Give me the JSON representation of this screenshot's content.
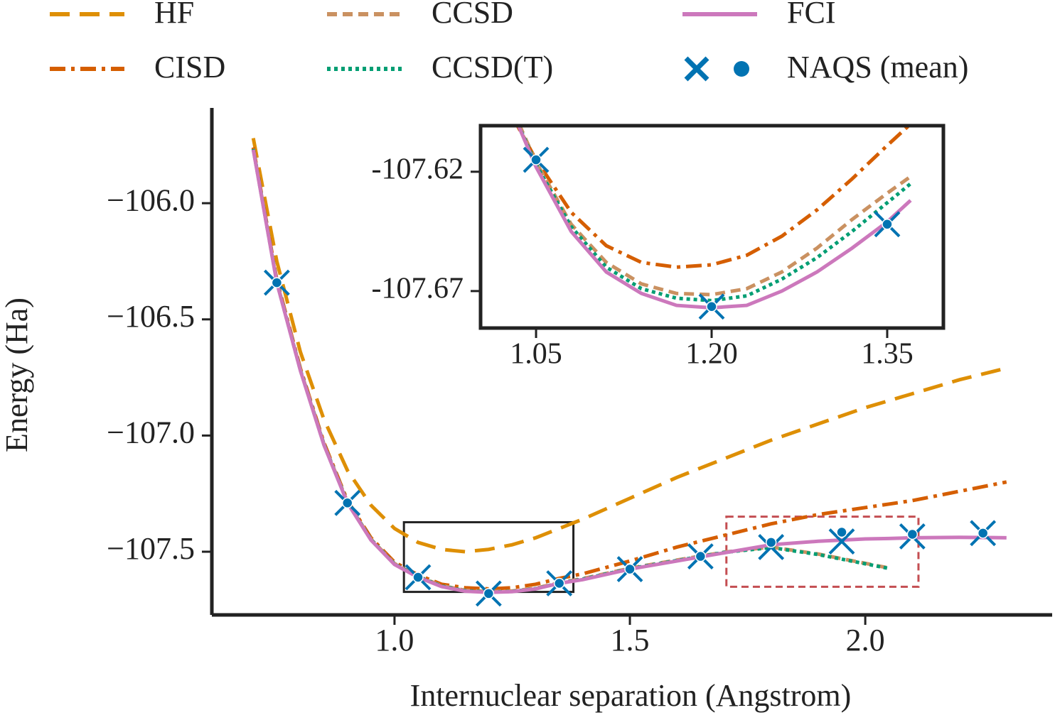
{
  "chart_data": [
    {
      "type": "line",
      "xlabel": "Internuclear separation (Angstrom)",
      "ylabel": "Energy (Ha)",
      "xlim": [
        0.612,
        2.397
      ],
      "ylim": [
        -107.772,
        -105.59
      ],
      "xticks": [
        {
          "value": 1,
          "label": "1.0"
        },
        1.5,
        {
          "value": 2,
          "label": "2.0"
        }
      ],
      "yticks": [
        {
          "value": -106,
          "label": "−106.0"
        },
        {
          "value": -106.5,
          "label": "−106.5"
        },
        {
          "value": -107,
          "label": "−107.0"
        },
        {
          "value": -107.5,
          "label": "−107.5"
        }
      ],
      "x": [
        0.7,
        0.75,
        0.8,
        0.85,
        0.9,
        0.95,
        1.0,
        1.05,
        1.1,
        1.15,
        1.2,
        1.25,
        1.3,
        1.35,
        1.4,
        1.5,
        1.6,
        1.7,
        1.8,
        1.9,
        2.0,
        2.05,
        2.1,
        2.2,
        2.3
      ],
      "series": [
        {
          "name": "HF",
          "color": "#de8f05",
          "linestyle": "dashed",
          "values": [
            -105.72,
            -106.25,
            -106.64,
            -106.93,
            -107.15,
            -107.3,
            -107.4,
            -107.46,
            -107.49,
            -107.5,
            -107.49,
            -107.47,
            -107.44,
            -107.4,
            -107.36,
            -107.27,
            -107.18,
            -107.1,
            -107.02,
            -106.95,
            -106.88,
            -106.85,
            -106.82,
            -106.76,
            -106.71
          ]
        },
        {
          "name": "CISD",
          "color": "#d55e00",
          "linestyle": "dashdot",
          "values": [
            -105.76,
            -106.33,
            -106.71,
            -107.03,
            -107.28,
            -107.44,
            -107.545,
            -107.6,
            -107.64,
            -107.655,
            -107.66,
            -107.655,
            -107.64,
            -107.615,
            -107.595,
            -107.54,
            -107.48,
            -107.43,
            -107.38,
            -107.34,
            -107.31,
            -107.295,
            -107.28,
            -107.24,
            -107.2
          ]
        },
        {
          "name": "CCSD",
          "color": "#ca9161",
          "linestyle": "shortdash",
          "values": [
            -105.765,
            -106.338,
            -106.716,
            -107.036,
            -107.286,
            -107.446,
            -107.551,
            -107.606,
            -107.646,
            -107.666,
            -107.6715,
            -107.669,
            -107.657,
            -107.633,
            -107.616,
            -107.571,
            -107.536,
            -107.502,
            -107.48,
            -107.51,
            -107.55,
            -107.57,
            null,
            null,
            null
          ]
        },
        {
          "name": "CCSD(T)",
          "color": "#029e73",
          "linestyle": "dotted",
          "values": [
            -105.767,
            -106.34,
            -106.718,
            -107.038,
            -107.288,
            -107.448,
            -107.553,
            -107.608,
            -107.648,
            -107.668,
            -107.674,
            -107.671,
            -107.659,
            -107.635,
            -107.618,
            -107.573,
            -107.538,
            -107.503,
            -107.482,
            -107.512,
            -107.552,
            -107.572,
            null,
            null,
            null
          ]
        },
        {
          "name": "FCI",
          "color": "#cc78bc",
          "linestyle": "solid",
          "values": [
            -105.77,
            -106.342,
            -106.72,
            -107.04,
            -107.29,
            -107.45,
            -107.555,
            -107.61,
            -107.65,
            -107.67,
            -107.675,
            -107.672,
            -107.66,
            -107.636,
            -107.62,
            -107.575,
            -107.54,
            -107.505,
            -107.47,
            -107.455,
            -107.445,
            -107.443,
            -107.44,
            -107.438,
            -107.44
          ]
        },
        {
          "name": "NAQS (mean)",
          "color": "#0173b2",
          "marker": "x",
          "x": [
            0.75,
            0.9,
            1.05,
            1.2,
            1.35,
            1.5,
            1.65,
            1.8,
            1.95,
            2.1,
            2.25
          ],
          "values": [
            -106.342,
            -107.29,
            -107.61,
            -107.68,
            -107.636,
            -107.575,
            -107.52,
            -107.48,
            -107.456,
            -107.434,
            -107.42
          ],
          "mean_values": [
            -106.342,
            -107.29,
            -107.61,
            -107.68,
            -107.636,
            -107.575,
            -107.52,
            -107.46,
            -107.416,
            -107.425,
            -107.42
          ]
        }
      ],
      "zoom_box": {
        "xlim": [
          1.02,
          1.38
        ],
        "ylim": [
          -107.673,
          -107.373
        ],
        "color": "#222222"
      },
      "highlight_box": {
        "xlim": [
          1.705,
          2.113
        ],
        "ylim": [
          -107.651,
          -107.349
        ],
        "color": "#c44e52"
      }
    },
    {
      "type": "line",
      "xlim": [
        1.0026,
        1.398
      ],
      "ylim": [
        -107.6855,
        -107.6007
      ],
      "xticks": [
        1.05,
        {
          "value": 1.2,
          "label": "1.20"
        },
        1.35
      ],
      "yticks": [
        -107.62,
        -107.67
      ],
      "x": [
        1.03,
        1.05,
        1.08,
        1.11,
        1.14,
        1.17,
        1.2,
        1.23,
        1.26,
        1.29,
        1.32,
        1.35,
        1.37
      ],
      "series": [
        {
          "color": "#d55e00",
          "linestyle": "dashdot",
          "values": [
            -107.597,
            -107.615,
            -107.637,
            -107.651,
            -107.658,
            -107.66,
            -107.659,
            -107.655,
            -107.647,
            -107.636,
            -107.623,
            -107.609,
            -107.6
          ]
        },
        {
          "color": "#ca9161",
          "linestyle": "shortdash",
          "values": [
            -107.594,
            -107.616,
            -107.642,
            -107.658,
            -107.667,
            -107.671,
            -107.6715,
            -107.669,
            -107.662,
            -107.652,
            -107.64,
            -107.629,
            -107.622
          ]
        },
        {
          "color": "#029e73",
          "linestyle": "dotted",
          "values": [
            -107.595,
            -107.617,
            -107.643,
            -107.66,
            -107.669,
            -107.673,
            -107.674,
            -107.672,
            -107.665,
            -107.656,
            -107.645,
            -107.633,
            -107.625
          ]
        },
        {
          "color": "#cc78bc",
          "linestyle": "solid",
          "values": [
            -107.595,
            -107.618,
            -107.645,
            -107.662,
            -107.671,
            -107.676,
            -107.677,
            -107.676,
            -107.67,
            -107.662,
            -107.652,
            -107.641,
            -107.632
          ]
        },
        {
          "color": "#0173b2",
          "marker": "x",
          "x": [
            1.05,
            1.2,
            1.35
          ],
          "values": [
            -107.615,
            -107.6765,
            -107.642
          ],
          "mean_values": [
            -107.615,
            -107.6765,
            -107.642
          ]
        }
      ]
    }
  ]
}
